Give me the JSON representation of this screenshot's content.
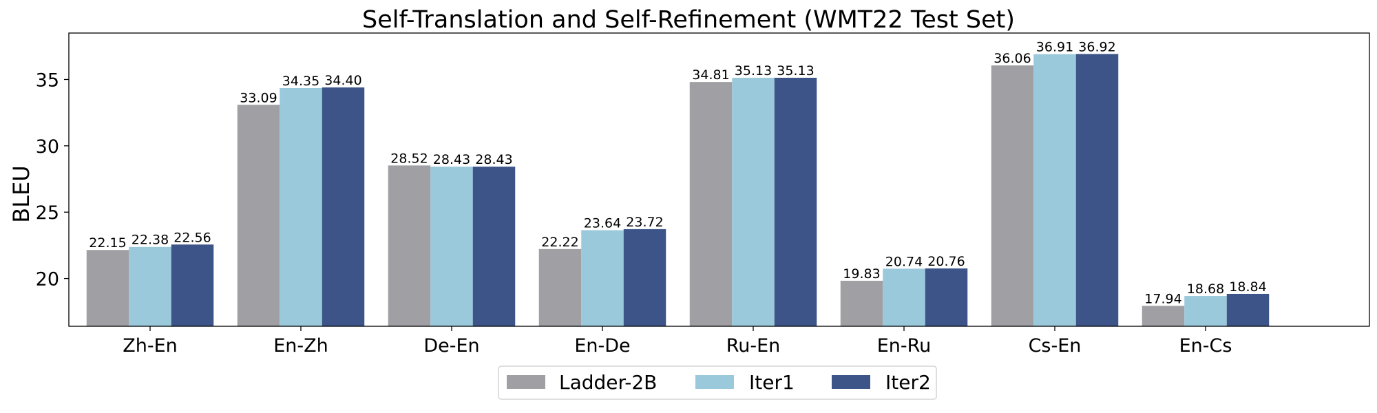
{
  "chart_data": {
    "type": "bar",
    "title": "Self-Translation and Self-Refinement (WMT22 Test Set)",
    "xlabel": "",
    "ylabel": "BLEU",
    "ylim": [
      16.4,
      38.5
    ],
    "yticks": [
      20,
      25,
      30,
      35
    ],
    "grid": false,
    "legend_position": "bottom-center",
    "categories": [
      "Zh-En",
      "En-Zh",
      "De-En",
      "En-De",
      "Ru-En",
      "En-Ru",
      "Cs-En",
      "En-Cs"
    ],
    "series": [
      {
        "name": "Ladder-2B",
        "color": "#A09FA4",
        "values": [
          22.15,
          33.09,
          28.52,
          22.22,
          34.81,
          19.83,
          36.06,
          17.94
        ],
        "labels": [
          "22.15",
          "33.09",
          "28.52",
          "22.22",
          "34.81",
          "19.83",
          "36.06",
          "17.94"
        ]
      },
      {
        "name": "Iter1",
        "color": "#9AC9DB",
        "values": [
          22.38,
          34.35,
          28.43,
          23.64,
          35.13,
          20.74,
          36.91,
          18.68
        ],
        "labels": [
          "22.38",
          "34.35",
          "28.43",
          "23.64",
          "35.13",
          "20.74",
          "36.91",
          "18.68"
        ]
      },
      {
        "name": "Iter2",
        "color": "#3C5488",
        "values": [
          22.56,
          34.4,
          28.43,
          23.72,
          35.13,
          20.76,
          36.92,
          18.84
        ],
        "labels": [
          "22.56",
          "34.40",
          "28.43",
          "23.72",
          "35.13",
          "20.76",
          "36.92",
          "18.84"
        ]
      }
    ]
  }
}
